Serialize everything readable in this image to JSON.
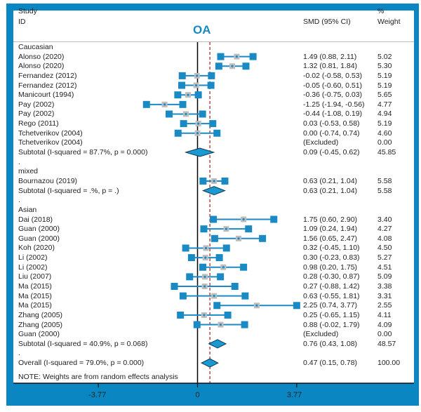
{
  "header": {
    "study": "Study",
    "id": "ID",
    "title": "OA",
    "smd": "SMD (95% CI)",
    "pct": "%",
    "weight": "Weight"
  },
  "note": "NOTE: Weights are from random effects analysis",
  "colors": {
    "frame": "#0a86c2",
    "marker": "#1a8ac4",
    "null_line": "#000000",
    "overall_line": "#a01c1c"
  },
  "chart_data": {
    "type": "forest",
    "title": "OA",
    "xlabel": "SMD",
    "xticks": [
      -3.77,
      0,
      3.77
    ],
    "xtick_labels": [
      "-3.77",
      "0",
      "3.77"
    ],
    "overall_effect": 0.47,
    "rows": [
      {
        "kind": "group",
        "label": "Caucasian"
      },
      {
        "kind": "study",
        "label": "Alonso (2020)",
        "smd": 1.49,
        "lo": 0.88,
        "hi": 2.11,
        "ci": "1.49 (0.88, 2.11)",
        "weight": "5.02"
      },
      {
        "kind": "study",
        "label": "Alonso (2020)",
        "smd": 1.32,
        "lo": 0.81,
        "hi": 1.84,
        "ci": "1.32 (0.81, 1.84)",
        "weight": "5.30"
      },
      {
        "kind": "study",
        "label": "Fernandez (2012)",
        "smd": -0.02,
        "lo": -0.58,
        "hi": 0.53,
        "ci": "-0.02 (-0.58, 0.53)",
        "weight": "5.19"
      },
      {
        "kind": "study",
        "label": "Fernandez (2012)",
        "smd": -0.05,
        "lo": -0.6,
        "hi": 0.51,
        "ci": "-0.05 (-0.60, 0.51)",
        "weight": "5.19"
      },
      {
        "kind": "study",
        "label": "Manicourt (1994)",
        "smd": -0.36,
        "lo": -0.75,
        "hi": 0.03,
        "ci": "-0.36 (-0.75, 0.03)",
        "weight": "5.65"
      },
      {
        "kind": "study",
        "label": "Pay (2002)",
        "smd": -1.25,
        "lo": -1.94,
        "hi": -0.56,
        "ci": "-1.25 (-1.94, -0.56)",
        "weight": "4.77"
      },
      {
        "kind": "study",
        "label": "Pay (2002)",
        "smd": -0.44,
        "lo": -1.08,
        "hi": 0.19,
        "ci": "-0.44 (-1.08, 0.19)",
        "weight": "4.94"
      },
      {
        "kind": "study",
        "label": "Rego (2011)",
        "smd": 0.03,
        "lo": -0.53,
        "hi": 0.58,
        "ci": "0.03 (-0.53, 0.58)",
        "weight": "5.19"
      },
      {
        "kind": "study",
        "label": "Tchetverikov (2004)",
        "smd": 0.0,
        "lo": -0.74,
        "hi": 0.74,
        "ci": "0.00 (-0.74, 0.74)",
        "weight": "4.60"
      },
      {
        "kind": "study",
        "label": "Tchetverikov (2004)",
        "ci": "(Excluded)",
        "weight": "0.00"
      },
      {
        "kind": "subtotal",
        "label": "Subtotal  (I-squared = 87.7%, p = 0.000)",
        "smd": 0.09,
        "lo": -0.45,
        "hi": 0.62,
        "ci": "0.09 (-0.45, 0.62)",
        "weight": "45.85"
      },
      {
        "kind": "spacer",
        "label": "."
      },
      {
        "kind": "group",
        "label": "mixed"
      },
      {
        "kind": "study",
        "label": "Bournazou (2019)",
        "smd": 0.63,
        "lo": 0.21,
        "hi": 1.04,
        "ci": "0.63 (0.21, 1.04)",
        "weight": "5.58"
      },
      {
        "kind": "subtotal",
        "label": "Subtotal  (I-squared = .%, p = .)",
        "smd": 0.63,
        "lo": 0.21,
        "hi": 1.04,
        "ci": "0.63 (0.21, 1.04)",
        "weight": "5.58"
      },
      {
        "kind": "spacer",
        "label": "."
      },
      {
        "kind": "group",
        "label": "Asian"
      },
      {
        "kind": "study",
        "label": "Dai (2018)",
        "smd": 1.75,
        "lo": 0.6,
        "hi": 2.9,
        "ci": "1.75 (0.60, 2.90)",
        "weight": "3.40"
      },
      {
        "kind": "study",
        "label": "Guan (2000)",
        "smd": 1.09,
        "lo": 0.24,
        "hi": 1.94,
        "ci": "1.09 (0.24, 1.94)",
        "weight": "4.27"
      },
      {
        "kind": "study",
        "label": "Guan (2000)",
        "smd": 1.56,
        "lo": 0.65,
        "hi": 2.47,
        "ci": "1.56 (0.65, 2.47)",
        "weight": "4.08"
      },
      {
        "kind": "study",
        "label": "Koh (2020)",
        "smd": 0.32,
        "lo": -0.45,
        "hi": 1.1,
        "ci": "0.32 (-0.45, 1.10)",
        "weight": "4.50"
      },
      {
        "kind": "study",
        "label": "Li (2002)",
        "smd": 0.3,
        "lo": -0.23,
        "hi": 0.83,
        "ci": "0.30 (-0.23, 0.83)",
        "weight": "5.27"
      },
      {
        "kind": "study",
        "label": "Li (2002)",
        "smd": 0.98,
        "lo": 0.2,
        "hi": 1.75,
        "ci": "0.98 (0.20, 1.75)",
        "weight": "4.51"
      },
      {
        "kind": "study",
        "label": "Liu (2007)",
        "smd": 0.28,
        "lo": -0.3,
        "hi": 0.87,
        "ci": "0.28 (-0.30, 0.87)",
        "weight": "5.09"
      },
      {
        "kind": "study",
        "label": "Ma (2015)",
        "smd": 0.27,
        "lo": -0.88,
        "hi": 1.42,
        "ci": "0.27 (-0.88, 1.42)",
        "weight": "3.38"
      },
      {
        "kind": "study",
        "label": "Ma (2015)",
        "smd": 0.63,
        "lo": -0.55,
        "hi": 1.81,
        "ci": "0.63 (-0.55, 1.81)",
        "weight": "3.31"
      },
      {
        "kind": "study",
        "label": "Ma (2015)",
        "smd": 2.25,
        "lo": 0.74,
        "hi": 3.77,
        "ci": "2.25 (0.74, 3.77)",
        "weight": "2.55"
      },
      {
        "kind": "study",
        "label": "Zhang (2005)",
        "smd": 0.25,
        "lo": -0.65,
        "hi": 1.15,
        "ci": "0.25 (-0.65, 1.15)",
        "weight": "4.11"
      },
      {
        "kind": "study",
        "label": "Zhang (2005)",
        "smd": 0.88,
        "lo": -0.02,
        "hi": 1.79,
        "ci": "0.88 (-0.02, 1.79)",
        "weight": "4.09"
      },
      {
        "kind": "study",
        "label": "Guan (2000)",
        "ci": "(Excluded)",
        "weight": "0.00"
      },
      {
        "kind": "subtotal",
        "label": "Subtotal  (I-squared = 40.9%, p = 0.068)",
        "smd": 0.76,
        "lo": 0.43,
        "hi": 1.08,
        "ci": "0.76 (0.43, 1.08)",
        "weight": "48.57"
      },
      {
        "kind": "spacer",
        "label": "."
      },
      {
        "kind": "overall",
        "label": "Overall  (I-squared = 79.0%, p = 0.000)",
        "smd": 0.47,
        "lo": 0.15,
        "hi": 0.78,
        "ci": "0.47 (0.15, 0.78)",
        "weight": "100.00"
      }
    ]
  }
}
